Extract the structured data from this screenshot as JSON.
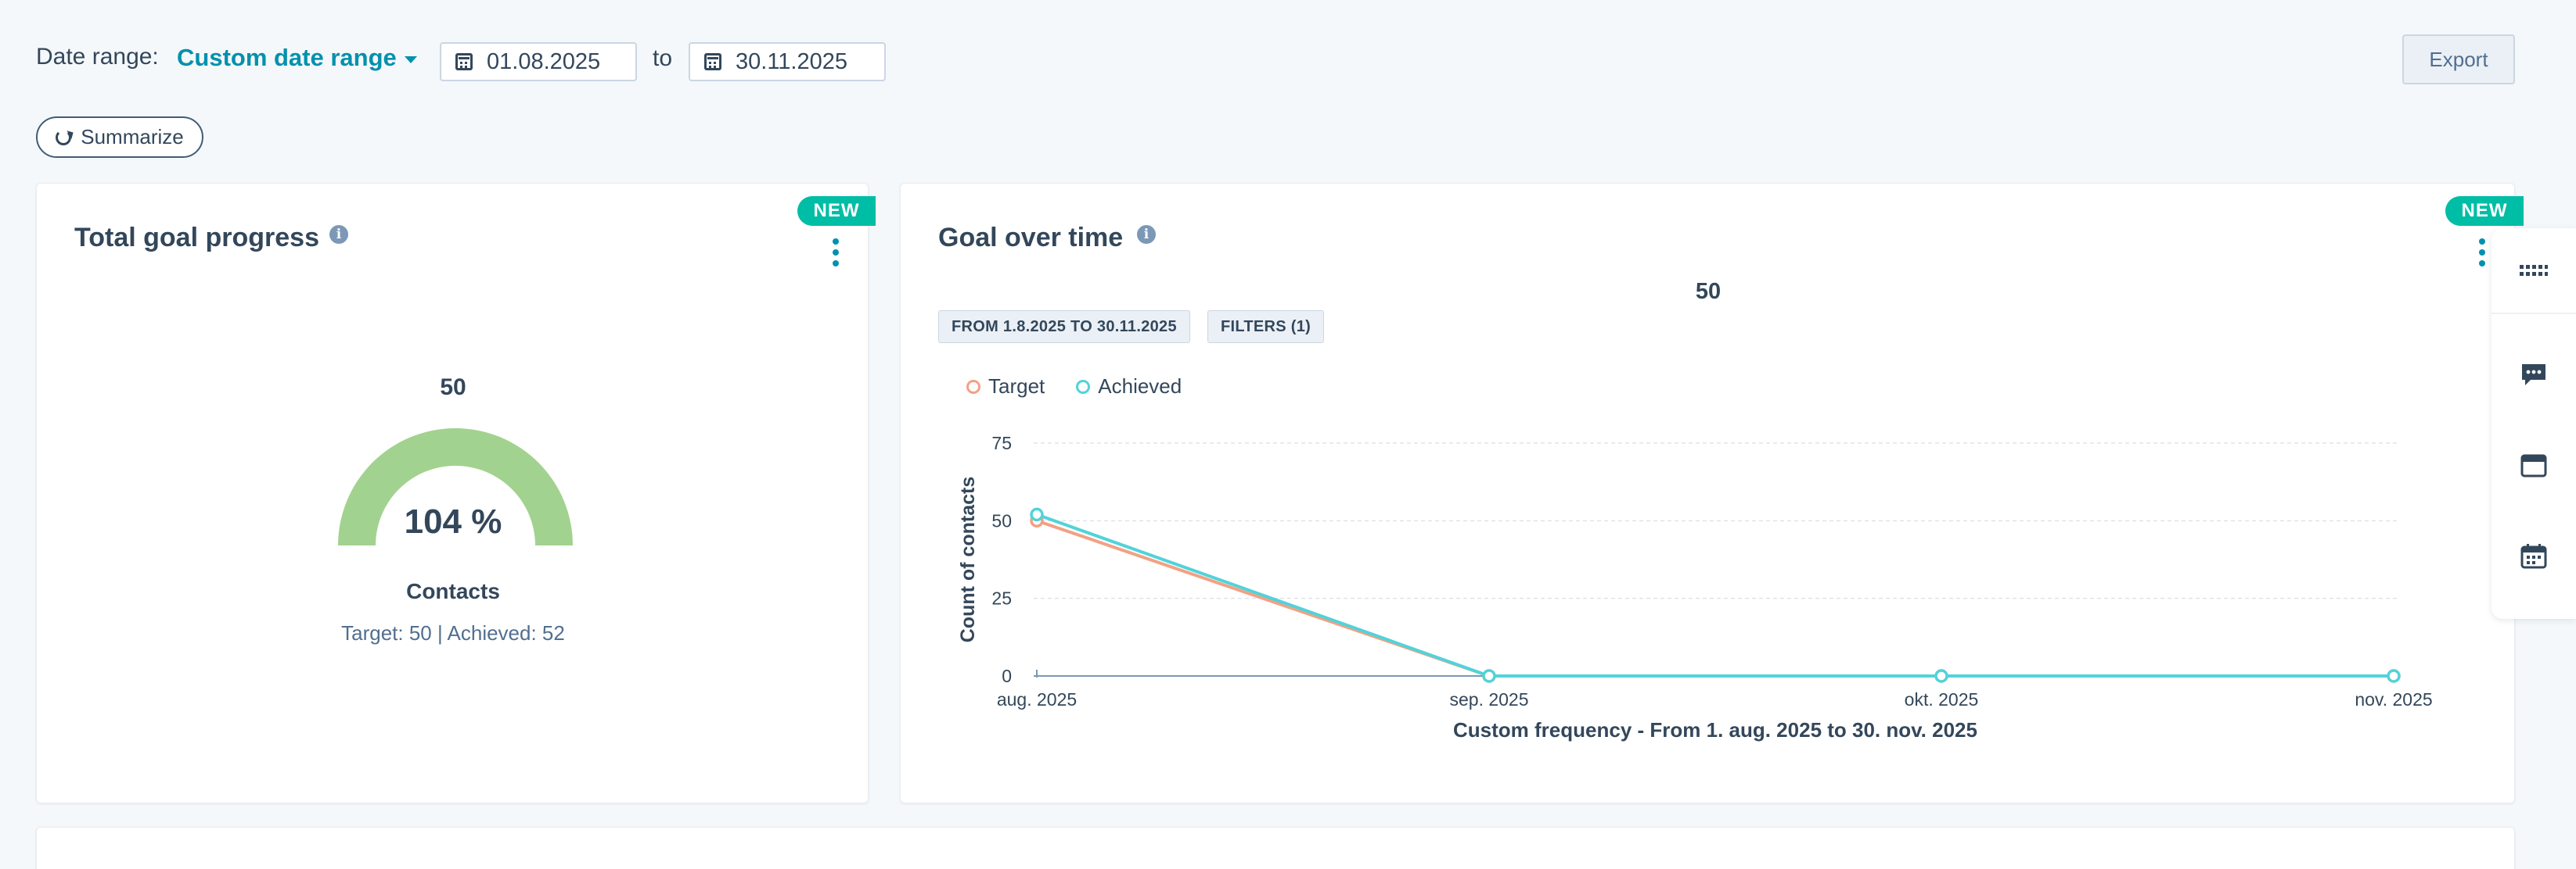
{
  "toolbar": {
    "date_range_label": "Date range:",
    "date_range_value": "Custom date range",
    "start_date": "01.08.2025",
    "to_label": "to",
    "end_date": "30.11.2025",
    "export_label": "Export",
    "summarize_label": "Summarize"
  },
  "goal_progress_card": {
    "title": "Total goal progress",
    "badge": "NEW",
    "gauge_target_value": "50",
    "percent_label": "104 %",
    "percent_value": 104,
    "metric_label": "Contacts",
    "summary": "Target: 50 | Achieved: 52",
    "gauge_color": "#a2d28f"
  },
  "goal_over_time_card": {
    "title": "Goal over time",
    "badge": "NEW",
    "top_value": "50",
    "date_chip": "FROM 1.8.2025 TO 30.11.2025",
    "filters_chip": "FILTERS (1)"
  },
  "chart_data": {
    "type": "line",
    "categories": [
      "aug. 2025",
      "sep. 2025",
      "okt. 2025",
      "nov. 2025"
    ],
    "series": [
      {
        "name": "Target",
        "values": [
          50,
          0,
          0,
          0
        ],
        "color": "#f2a185"
      },
      {
        "name": "Achieved",
        "values": [
          52,
          0,
          0,
          0
        ],
        "color": "#51d3d9"
      }
    ],
    "ylabel": "Count of contacts",
    "xlabel": "Custom frequency - From 1. aug. 2025 to 30. nov. 2025",
    "y_ticks": [
      "0",
      "25",
      "50",
      "75"
    ],
    "ylim": [
      0,
      75
    ],
    "grid": true,
    "legend": "top-left"
  },
  "right_rail": {
    "icons": [
      "grid-icon",
      "chat-icon",
      "window-icon",
      "calendar-icon"
    ]
  }
}
